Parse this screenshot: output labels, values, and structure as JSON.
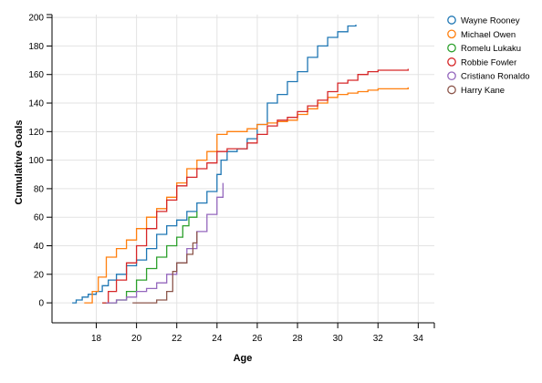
{
  "chart_data": {
    "type": "line",
    "xlabel": "Age",
    "ylabel": "Cumulative Goals",
    "xlim": [
      15.8,
      34.8
    ],
    "ylim": [
      -14,
      202
    ],
    "x_ticks": [
      18,
      20,
      22,
      24,
      26,
      28,
      30,
      32,
      34
    ],
    "y_ticks": [
      0,
      20,
      40,
      60,
      80,
      100,
      120,
      140,
      160,
      180,
      200
    ],
    "grid": true,
    "legend_position": "top-right",
    "series": [
      {
        "name": "Wayne Rooney",
        "color": "#1f77b4",
        "points": [
          [
            16.8,
            0
          ],
          [
            17.0,
            2
          ],
          [
            17.3,
            4
          ],
          [
            17.6,
            6
          ],
          [
            18.0,
            8
          ],
          [
            18.3,
            12
          ],
          [
            18.6,
            16
          ],
          [
            19.0,
            20
          ],
          [
            19.5,
            26
          ],
          [
            20.0,
            30
          ],
          [
            20.5,
            38
          ],
          [
            21.0,
            48
          ],
          [
            21.5,
            54
          ],
          [
            22.0,
            58
          ],
          [
            22.5,
            64
          ],
          [
            23.0,
            70
          ],
          [
            23.5,
            78
          ],
          [
            24.0,
            90
          ],
          [
            24.2,
            100
          ],
          [
            24.5,
            106
          ],
          [
            25.0,
            108
          ],
          [
            25.5,
            115
          ],
          [
            26.0,
            125
          ],
          [
            26.5,
            140
          ],
          [
            27.0,
            146
          ],
          [
            27.5,
            155
          ],
          [
            28.0,
            162
          ],
          [
            28.5,
            172
          ],
          [
            29.0,
            180
          ],
          [
            29.5,
            186
          ],
          [
            30.0,
            190
          ],
          [
            30.5,
            194
          ],
          [
            30.9,
            195
          ]
        ]
      },
      {
        "name": "Michael Owen",
        "color": "#ff7f0e",
        "points": [
          [
            17.4,
            0
          ],
          [
            17.8,
            8
          ],
          [
            18.1,
            18
          ],
          [
            18.5,
            32
          ],
          [
            19.0,
            38
          ],
          [
            19.5,
            44
          ],
          [
            20.0,
            52
          ],
          [
            20.5,
            60
          ],
          [
            21.0,
            66
          ],
          [
            21.5,
            74
          ],
          [
            22.0,
            84
          ],
          [
            22.5,
            94
          ],
          [
            23.0,
            100
          ],
          [
            23.5,
            106
          ],
          [
            24.0,
            118
          ],
          [
            24.5,
            120
          ],
          [
            25.0,
            120
          ],
          [
            25.5,
            122
          ],
          [
            26.0,
            125
          ],
          [
            26.5,
            126
          ],
          [
            27.0,
            127
          ],
          [
            27.5,
            128
          ],
          [
            28.0,
            132
          ],
          [
            28.5,
            136
          ],
          [
            29.0,
            140
          ],
          [
            29.5,
            144
          ],
          [
            30.0,
            146
          ],
          [
            30.5,
            147
          ],
          [
            31.0,
            148
          ],
          [
            31.5,
            149
          ],
          [
            32.0,
            150
          ],
          [
            32.5,
            150
          ],
          [
            33.0,
            150
          ],
          [
            33.5,
            151
          ]
        ]
      },
      {
        "name": "Romelu Lukaku",
        "color": "#2ca02c",
        "points": [
          [
            18.3,
            0
          ],
          [
            18.6,
            0
          ],
          [
            19.0,
            2
          ],
          [
            19.5,
            8
          ],
          [
            20.0,
            16
          ],
          [
            20.5,
            24
          ],
          [
            21.0,
            32
          ],
          [
            21.5,
            40
          ],
          [
            22.0,
            46
          ],
          [
            22.3,
            54
          ],
          [
            22.6,
            60
          ],
          [
            23.0,
            64
          ]
        ]
      },
      {
        "name": "Robbie Fowler",
        "color": "#d62728",
        "points": [
          [
            18.3,
            0
          ],
          [
            18.6,
            8
          ],
          [
            19.0,
            16
          ],
          [
            19.5,
            28
          ],
          [
            20.0,
            40
          ],
          [
            20.5,
            52
          ],
          [
            21.0,
            64
          ],
          [
            21.5,
            72
          ],
          [
            22.0,
            82
          ],
          [
            22.5,
            88
          ],
          [
            23.0,
            94
          ],
          [
            23.5,
            98
          ],
          [
            24.0,
            106
          ],
          [
            24.5,
            108
          ],
          [
            25.0,
            108
          ],
          [
            25.5,
            112
          ],
          [
            26.0,
            118
          ],
          [
            26.5,
            124
          ],
          [
            27.0,
            128
          ],
          [
            27.5,
            130
          ],
          [
            28.0,
            134
          ],
          [
            28.5,
            138
          ],
          [
            29.0,
            142
          ],
          [
            29.5,
            148
          ],
          [
            30.0,
            154
          ],
          [
            30.5,
            156
          ],
          [
            31.0,
            160
          ],
          [
            31.5,
            162
          ],
          [
            32.0,
            163
          ],
          [
            33.5,
            164
          ]
        ]
      },
      {
        "name": "Cristiano Ronaldo",
        "color": "#9467bd",
        "points": [
          [
            18.5,
            0
          ],
          [
            19.0,
            2
          ],
          [
            19.5,
            4
          ],
          [
            20.0,
            8
          ],
          [
            20.5,
            10
          ],
          [
            21.0,
            14
          ],
          [
            21.5,
            20
          ],
          [
            22.0,
            28
          ],
          [
            22.5,
            38
          ],
          [
            23.0,
            50
          ],
          [
            23.5,
            62
          ],
          [
            24.0,
            74
          ],
          [
            24.3,
            84
          ]
        ]
      },
      {
        "name": "Harry Kane",
        "color": "#8c564b",
        "points": [
          [
            19.8,
            0
          ],
          [
            20.5,
            0
          ],
          [
            21.0,
            2
          ],
          [
            21.5,
            8
          ],
          [
            21.8,
            22
          ],
          [
            22.0,
            28
          ],
          [
            22.5,
            34
          ],
          [
            22.8,
            42
          ],
          [
            23.0,
            50
          ]
        ]
      }
    ]
  }
}
